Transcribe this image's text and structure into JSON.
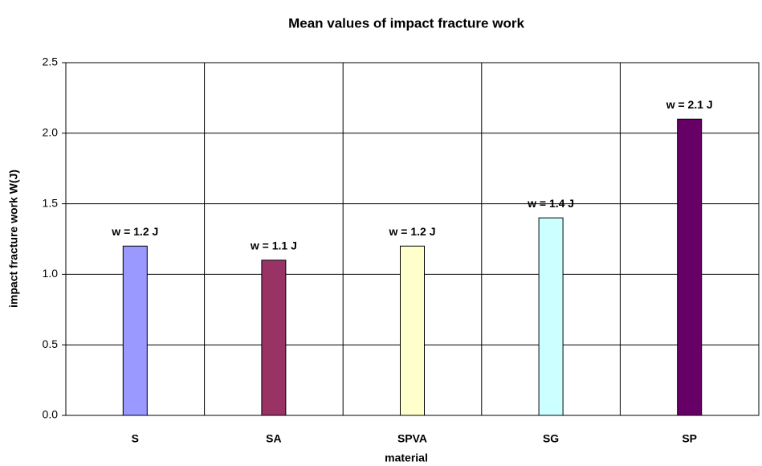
{
  "chart_data": {
    "type": "bar",
    "title": "Mean values of impact fracture work",
    "x_label": "material",
    "y_label": "impact fracture work W(J)",
    "categories": [
      "S",
      "SA",
      "SPVA",
      "SG",
      "SP"
    ],
    "values": [
      1.2,
      1.1,
      1.2,
      1.4,
      2.1
    ],
    "value_labels": [
      "w = 1.2 J",
      "w = 1.1 J",
      "w = 1.2 J",
      "w = 1.4 J",
      "w = 2.1 J"
    ],
    "colors": [
      "#9999ff",
      "#993366",
      "#ffffcc",
      "#ccffff",
      "#660066"
    ],
    "ylim": [
      0,
      2.5
    ],
    "yticks": [
      {
        "value": 0,
        "label": "0.0"
      },
      0.5,
      {
        "value": 1,
        "label": "1.0"
      },
      1.5,
      {
        "value": 2,
        "label": "2.0"
      },
      2.5
    ],
    "grid": true
  }
}
